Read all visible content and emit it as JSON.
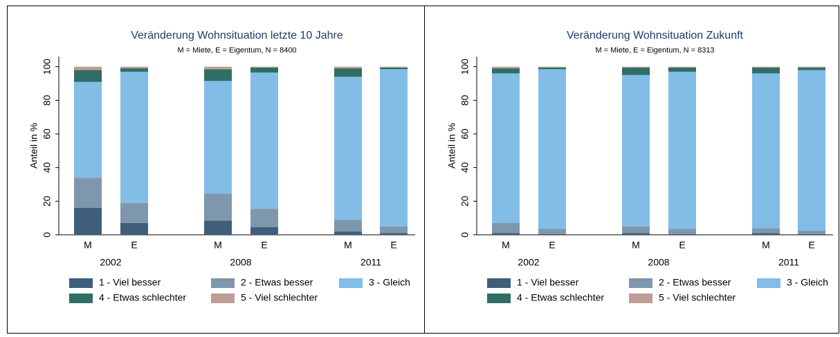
{
  "chart_data": [
    {
      "type": "stacked-bar",
      "title": "Veränderung Wohnsituation letzte 10 Jahre",
      "subtitle": "M = Miete, E = Eigentum, N = 8400",
      "y_label": "Anteil in %",
      "categories": [
        "M",
        "E",
        "M",
        "E",
        "M",
        "E"
      ],
      "groups": [
        "2002",
        "2008",
        "2011"
      ],
      "ylim": [
        0,
        106
      ],
      "yticks": [
        0,
        20,
        40,
        60,
        80,
        100
      ],
      "series": [
        {
          "name": "1 - Viel besser",
          "color": "#3e5e7b",
          "values": [
            16,
            7,
            8.5,
            4.5,
            2,
            1
          ]
        },
        {
          "name": "2 - Etwas besser",
          "color": "#7f97ad",
          "values": [
            18,
            12,
            16,
            11,
            7,
            4
          ]
        },
        {
          "name": "3 - Gleich",
          "color": "#82bde8",
          "values": [
            57,
            78,
            67,
            81,
            85,
            93.5
          ]
        },
        {
          "name": "4 - Etwas schlechter",
          "color": "#2f6e65",
          "values": [
            7,
            2,
            7,
            3,
            5,
            1
          ]
        },
        {
          "name": "5 - Viel schlechter",
          "color": "#bd9d95",
          "values": [
            2,
            1,
            1.5,
            0.5,
            1,
            0.5
          ]
        }
      ]
    },
    {
      "type": "stacked-bar",
      "title": "Veränderung Wohnsituation Zukunft",
      "subtitle": "M = Miete, E = Eigentum, N = 8313",
      "y_label": "Anteil in %",
      "categories": [
        "M",
        "E",
        "M",
        "E",
        "M",
        "E"
      ],
      "groups": [
        "2002",
        "2008",
        "2011"
      ],
      "ylim": [
        0,
        106
      ],
      "yticks": [
        0,
        20,
        40,
        60,
        80,
        100
      ],
      "series": [
        {
          "name": "1 - Viel besser",
          "color": "#3e5e7b",
          "values": [
            1,
            0.5,
            1,
            0.5,
            1,
            0.5
          ]
        },
        {
          "name": "2 - Etwas besser",
          "color": "#7f97ad",
          "values": [
            6,
            3,
            4,
            3,
            3,
            2
          ]
        },
        {
          "name": "3 - Gleich",
          "color": "#82bde8",
          "values": [
            89,
            95,
            90,
            93.5,
            92,
            95.5
          ]
        },
        {
          "name": "4 - Etwas schlechter",
          "color": "#2f6e65",
          "values": [
            3,
            1,
            4.5,
            2.5,
            3.5,
            1.5
          ]
        },
        {
          "name": "5 - Viel schlechter",
          "color": "#bd9d95",
          "values": [
            1,
            0.5,
            0.5,
            0.5,
            0.5,
            0.5
          ]
        }
      ]
    }
  ]
}
